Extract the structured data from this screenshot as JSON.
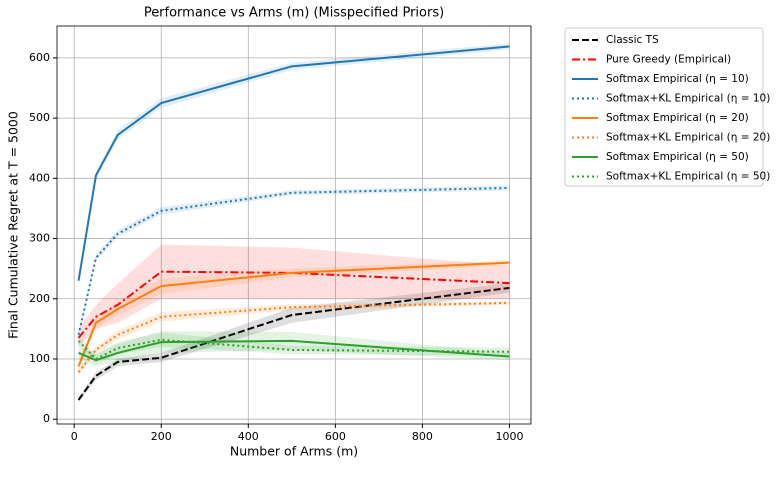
{
  "chart_data": {
    "type": "line",
    "title": "Performance vs Arms (m) (Misspecified Priors)",
    "x_label": "Number of Arms (m)",
    "y_label": "Final Cumulative Regret at T = 5000",
    "x": [
      10,
      50,
      100,
      200,
      500,
      1000
    ],
    "xlim": [
      -39.5,
      1049.5
    ],
    "ylim": [
      -8,
      653
    ],
    "xticks": [
      0,
      200,
      400,
      600,
      800,
      1000
    ],
    "yticks": [
      0,
      100,
      200,
      300,
      400,
      500,
      600
    ],
    "grid": true,
    "legend": "outside upper right",
    "series": [
      {
        "name": "Classic TS",
        "color": "#000000",
        "dash": "dashed",
        "values": [
          32,
          72,
          95,
          102,
          173,
          218
        ],
        "ci_low": [
          28,
          65,
          88,
          95,
          160,
          210
        ],
        "ci_high": [
          36,
          78,
          100,
          110,
          185,
          226
        ]
      },
      {
        "name": "Pure Greedy (Empirical)",
        "color": "#ff0000",
        "dash": "dashdot",
        "values": [
          135,
          170,
          190,
          245,
          243,
          226
        ],
        "ci_low": [
          120,
          150,
          160,
          200,
          200,
          200
        ],
        "ci_high": [
          150,
          190,
          225,
          290,
          285,
          255
        ]
      },
      {
        "name": "Softmax Empirical (η = 10)",
        "color": "#1f77b4",
        "dash": "solid",
        "values": [
          230,
          405,
          472,
          525,
          586,
          619
        ],
        "ci_low": [
          225,
          398,
          465,
          517,
          580,
          614
        ],
        "ci_high": [
          235,
          410,
          480,
          533,
          592,
          624
        ]
      },
      {
        "name": "Softmax+KL Empirical (η = 10)",
        "color": "#1f77b4",
        "dash": "dotted",
        "values": [
          140,
          268,
          308,
          346,
          376,
          384
        ],
        "ci_low": [
          135,
          262,
          302,
          340,
          372,
          380
        ],
        "ci_high": [
          145,
          274,
          314,
          352,
          380,
          388
        ]
      },
      {
        "name": "Softmax Empirical (η = 20)",
        "color": "#ff7f0e",
        "dash": "solid",
        "values": [
          88,
          160,
          183,
          221,
          243,
          260
        ],
        "ci_low": [
          80,
          150,
          172,
          208,
          236,
          256
        ],
        "ci_high": [
          96,
          170,
          194,
          234,
          250,
          264
        ]
      },
      {
        "name": "Softmax+KL Empirical (η = 20)",
        "color": "#ff7f0e",
        "dash": "dotted",
        "values": [
          78,
          115,
          140,
          170,
          186,
          193
        ],
        "ci_low": [
          72,
          108,
          132,
          162,
          181,
          190
        ],
        "ci_high": [
          84,
          122,
          148,
          178,
          191,
          196
        ]
      },
      {
        "name": "Softmax Empirical (η = 50)",
        "color": "#2ca02c",
        "dash": "solid",
        "values": [
          110,
          98,
          110,
          128,
          130,
          104
        ],
        "ci_low": [
          100,
          88,
          95,
          110,
          115,
          98
        ],
        "ci_high": [
          120,
          108,
          125,
          146,
          145,
          110
        ]
      },
      {
        "name": "Softmax+KL Empirical (η = 50)",
        "color": "#2ca02c",
        "dash": "dotted",
        "values": [
          130,
          100,
          118,
          132,
          115,
          112
        ],
        "ci_low": [
          122,
          92,
          108,
          120,
          108,
          105
        ],
        "ci_high": [
          138,
          108,
          128,
          144,
          122,
          119
        ]
      }
    ]
  }
}
